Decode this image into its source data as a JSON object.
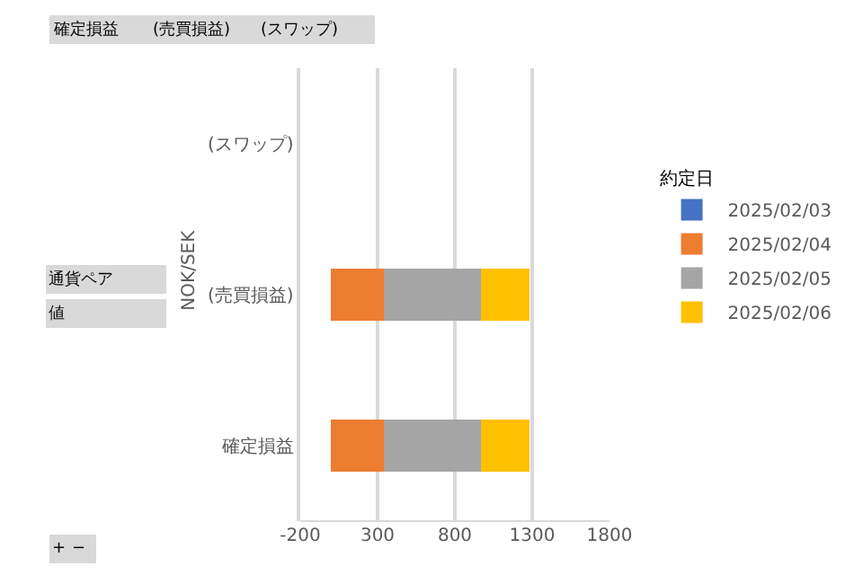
{
  "chart_data": {
    "type": "bar",
    "orientation": "horizontal",
    "stacked": true,
    "categories": [
      "(スワップ)",
      "(売買損益)",
      "確定損益"
    ],
    "ylabel": "NOK/SEK",
    "legend_title": "約定日",
    "series": [
      {
        "name": "2025/02/03",
        "color": "#4472c4",
        "values": [
          null,
          null,
          null
        ]
      },
      {
        "name": "2025/02/04",
        "color": "#ed7d31",
        "values": [
          null,
          340,
          340
        ]
      },
      {
        "name": "2025/02/05",
        "color": "#a5a5a5",
        "values": [
          null,
          630,
          630
        ]
      },
      {
        "name": "2025/02/06",
        "color": "#ffc000",
        "values": [
          null,
          310,
          310
        ]
      }
    ],
    "xlim": [
      -200,
      1800
    ],
    "xticks": [
      -200,
      300,
      800,
      1300,
      1800
    ],
    "grid": "x",
    "legend": "right",
    "annotations": [
      "確定損益",
      "(売買損益)",
      "(スワップ)",
      "通貨ペア",
      "値",
      "+",
      "−"
    ]
  }
}
